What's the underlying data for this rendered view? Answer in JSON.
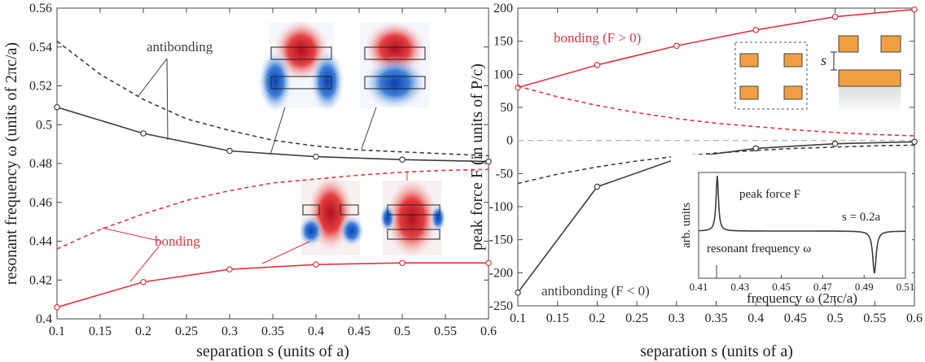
{
  "chart_data": [
    {
      "type": "line",
      "ylabel": "resonant frequency ω (units of 2πc/a)",
      "xlabel": "separation s (units of a)",
      "xlim": [
        0.1,
        0.6
      ],
      "ylim": [
        0.4,
        0.56
      ],
      "xticks": [
        "0.1",
        "0.15",
        "0.2",
        "0.25",
        "0.3",
        "0.35",
        "0.4",
        "0.45",
        "0.5",
        "0.55",
        "0.6"
      ],
      "yticks": [
        "0.4",
        "0.42",
        "0.44",
        "0.46",
        "0.48",
        "0.5",
        "0.52",
        "0.54",
        "0.56"
      ],
      "series": [
        {
          "name": "antibonding (simulated)",
          "color": "#3b3f3b",
          "style": "solid",
          "markers": true,
          "x": [
            0.1,
            0.2,
            0.3,
            0.4,
            0.5,
            0.6
          ],
          "y": [
            0.509,
            0.4955,
            0.4865,
            0.4835,
            0.482,
            0.481
          ]
        },
        {
          "name": "antibonding (model)",
          "color": "#3b3f3b",
          "style": "dashed",
          "markers": false,
          "x": [
            0.1,
            0.15,
            0.2,
            0.25,
            0.3,
            0.35,
            0.4,
            0.45,
            0.5,
            0.55,
            0.6
          ],
          "y": [
            0.543,
            0.526,
            0.513,
            0.503,
            0.497,
            0.492,
            0.489,
            0.487,
            0.486,
            0.485,
            0.484
          ]
        },
        {
          "name": "bonding (simulated)",
          "color": "#e0343f",
          "style": "solid",
          "markers": true,
          "x": [
            0.1,
            0.2,
            0.3,
            0.4,
            0.5,
            0.6
          ],
          "y": [
            0.406,
            0.419,
            0.4255,
            0.428,
            0.4288,
            0.4288
          ]
        },
        {
          "name": "bonding (model)",
          "color": "#e0343f",
          "style": "dashed",
          "markers": false,
          "x": [
            0.1,
            0.15,
            0.2,
            0.25,
            0.3,
            0.35,
            0.4,
            0.45,
            0.5,
            0.55,
            0.6
          ],
          "y": [
            0.436,
            0.446,
            0.454,
            0.461,
            0.466,
            0.47,
            0.472,
            0.474,
            0.4755,
            0.4765,
            0.477
          ]
        }
      ],
      "annotations": {
        "antibonding": "antibonding",
        "bonding": "bonding"
      }
    },
    {
      "type": "line",
      "ylabel": "peak force F (in units of P/c)",
      "xlabel": "separation s (units of a)",
      "xlim": [
        0.1,
        0.6
      ],
      "ylim": [
        -250,
        200
      ],
      "xticks": [
        "0.1",
        "0.15",
        "0.2",
        "0.25",
        "0.3",
        "0.35",
        "0.4",
        "0.45",
        "0.5",
        "0.55",
        "0.6"
      ],
      "yticks": [
        "-250",
        "-200",
        "-150",
        "-100",
        "-50",
        "0",
        "50",
        "100",
        "150",
        "200"
      ],
      "series": [
        {
          "name": "bonding (F > 0) simulated",
          "color": "#e0343f",
          "style": "solid",
          "markers": true,
          "x": [
            0.1,
            0.2,
            0.3,
            0.4,
            0.5,
            0.6
          ],
          "y": [
            80,
            114,
            143,
            167,
            187,
            198
          ]
        },
        {
          "name": "bonding model",
          "color": "#e0343f",
          "style": "dashed",
          "markers": false,
          "x": [
            0.1,
            0.15,
            0.2,
            0.25,
            0.3,
            0.35,
            0.4,
            0.45,
            0.5,
            0.55,
            0.6
          ],
          "y": [
            82,
            66,
            53,
            42,
            33,
            26,
            21,
            16,
            12,
            9,
            7
          ]
        },
        {
          "name": "antibonding (F < 0) simulated",
          "color": "#3b3f3b",
          "style": "solid",
          "markers": true,
          "x": [
            0.1,
            0.2,
            0.3,
            0.4,
            0.5,
            0.6
          ],
          "y": [
            -230,
            -70,
            -28,
            -12,
            -5,
            -2
          ]
        },
        {
          "name": "antibonding model",
          "color": "#3b3f3b",
          "style": "dashed",
          "markers": false,
          "x": [
            0.1,
            0.15,
            0.2,
            0.25,
            0.3,
            0.35,
            0.4,
            0.45,
            0.5,
            0.55,
            0.6
          ],
          "y": [
            -65,
            -51,
            -40,
            -31,
            -24,
            -19,
            -15,
            -12,
            -10,
            -8,
            -7
          ]
        }
      ],
      "annotations": {
        "bonding": "bonding (F > 0)",
        "antibonding": "antibonding (F < 0)"
      },
      "diagram_label": "s",
      "inset": {
        "ylabel": "arb. units",
        "xlabel": "frequency ω (2πc/a)",
        "xlim": [
          0.41,
          0.51
        ],
        "xticks": [
          "0.41",
          "0.43",
          "0.45",
          "0.47",
          "0.49",
          "0.51"
        ],
        "peak_force_label": "peak force F",
        "resonant_label": "resonant frequency ω",
        "s_label": "s = 0.2a",
        "peak_force_freq": 0.419,
        "resonance_freq": 0.495
      }
    }
  ]
}
